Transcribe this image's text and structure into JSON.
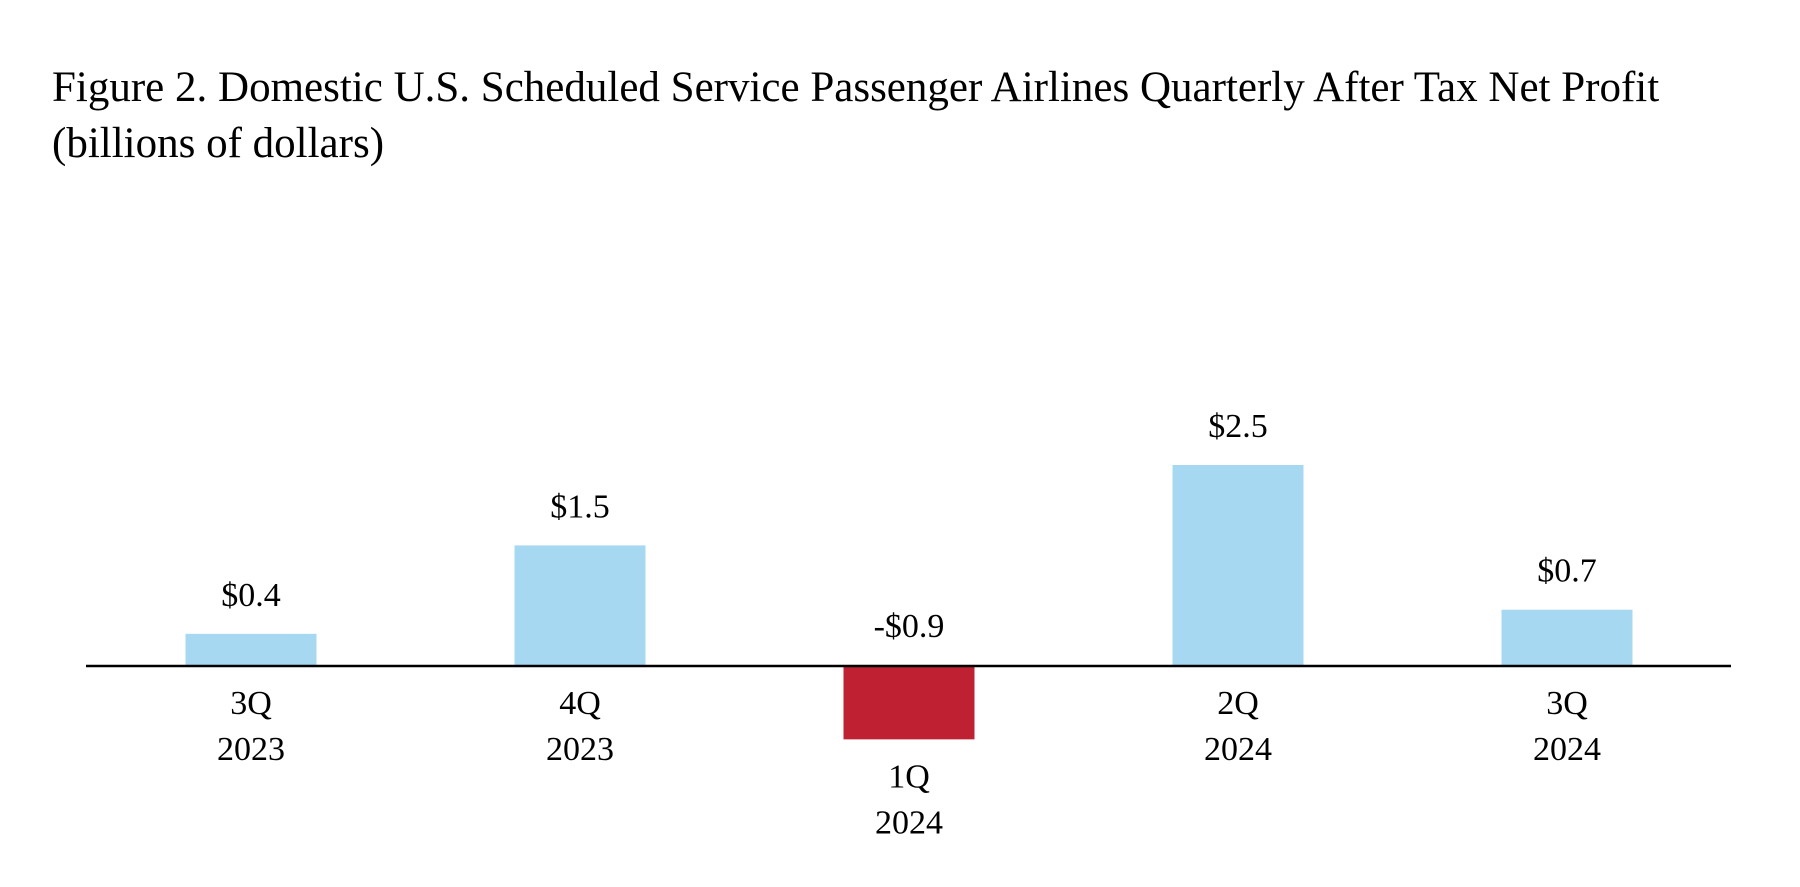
{
  "chart_data": {
    "type": "bar",
    "title": "Figure 2. Domestic U.S. Scheduled Service Passenger Airlines Quarterly After Tax Net Profit",
    "subtitle": "(billions of dollars)",
    "categories": [
      [
        "3Q",
        "2023"
      ],
      [
        "4Q",
        "2023"
      ],
      [
        "1Q",
        "2024"
      ],
      [
        "2Q",
        "2024"
      ],
      [
        "3Q",
        "2024"
      ]
    ],
    "values": [
      0.4,
      1.5,
      -0.9,
      2.5,
      0.7
    ],
    "data_labels": [
      "$0.4",
      "$1.5",
      "-$0.9",
      "$2.5",
      "$0.7"
    ],
    "colors": {
      "positive": "#a6d8f2",
      "negative": "#bf2032",
      "axis": "#000000"
    },
    "xlabel": "",
    "ylabel": "",
    "ylim": [
      -0.9,
      2.5
    ],
    "grid": false,
    "legend": "none"
  }
}
